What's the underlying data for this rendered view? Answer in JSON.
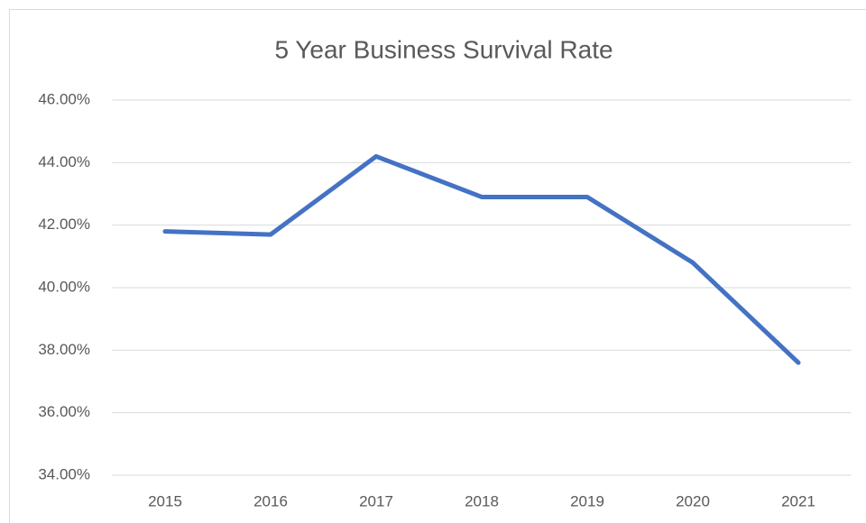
{
  "chart_data": {
    "type": "line",
    "title": "5 Year Business Survival Rate",
    "categories": [
      "2015",
      "2016",
      "2017",
      "2018",
      "2019",
      "2020",
      "2021"
    ],
    "values": [
      41.8,
      41.7,
      44.2,
      42.9,
      42.9,
      40.8,
      37.6
    ],
    "color": "#4472c4",
    "ylim": [
      34,
      46
    ],
    "yticks": [
      {
        "value": 34,
        "label": "34.00%"
      },
      {
        "value": 36,
        "label": "36.00%"
      },
      {
        "value": 38,
        "label": "38.00%"
      },
      {
        "value": 40,
        "label": "40.00%"
      },
      {
        "value": 42,
        "label": "42.00%"
      },
      {
        "value": 44,
        "label": "44.00%"
      },
      {
        "value": 46,
        "label": "46.00%"
      }
    ],
    "grid": true
  }
}
